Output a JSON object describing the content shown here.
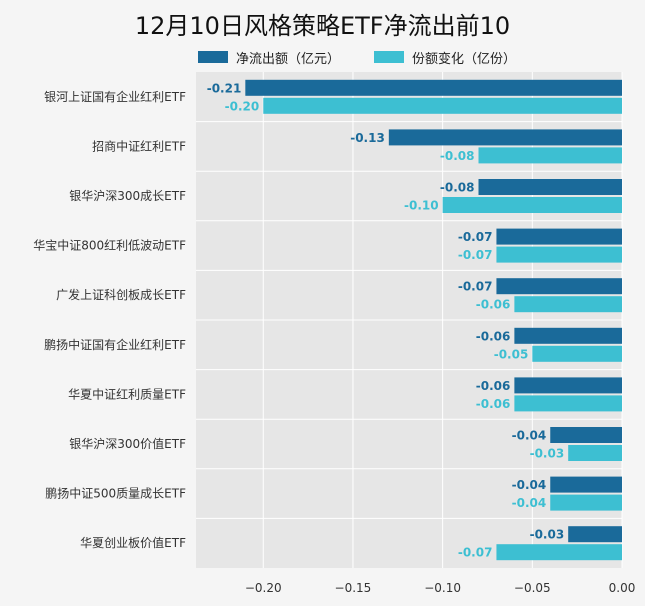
{
  "title": "12月10日风格策略ETF净流出前10",
  "colors": {
    "series0": "#1a6a9a",
    "series1": "#3dbfd2",
    "plot_bg": "#e6e6e6",
    "grid": "#ffffff"
  },
  "chart_data": {
    "type": "bar",
    "orientation": "horizontal",
    "categories": [
      "银河上证国有企业红利ETF",
      "招商中证红利ETF",
      "银华沪深300成长ETF",
      "华宝中证800红利低波动ETF",
      "广发上证科创板成长ETF",
      "鹏扬中证国有企业红利ETF",
      "华夏中证红利质量ETF",
      "银华沪深300价值ETF",
      "鹏扬中证500质量成长ETF",
      "华夏创业板价值ETF"
    ],
    "series": [
      {
        "name": "净流出额（亿元）",
        "values": [
          -0.21,
          -0.13,
          -0.08,
          -0.07,
          -0.07,
          -0.06,
          -0.06,
          -0.04,
          -0.04,
          -0.03
        ]
      },
      {
        "name": "份额变化（亿份）",
        "values": [
          -0.2,
          -0.08,
          -0.1,
          -0.07,
          -0.06,
          -0.05,
          -0.06,
          -0.03,
          -0.04,
          -0.07
        ]
      }
    ],
    "xlim": [
      -0.2375,
      0.0
    ],
    "xticks": [
      -0.2,
      -0.15,
      -0.1,
      -0.05,
      0.0
    ],
    "xtick_labels": [
      "−0.20",
      "−0.15",
      "−0.10",
      "−0.05",
      "0.00"
    ],
    "grid": true,
    "legend_position": "top"
  }
}
